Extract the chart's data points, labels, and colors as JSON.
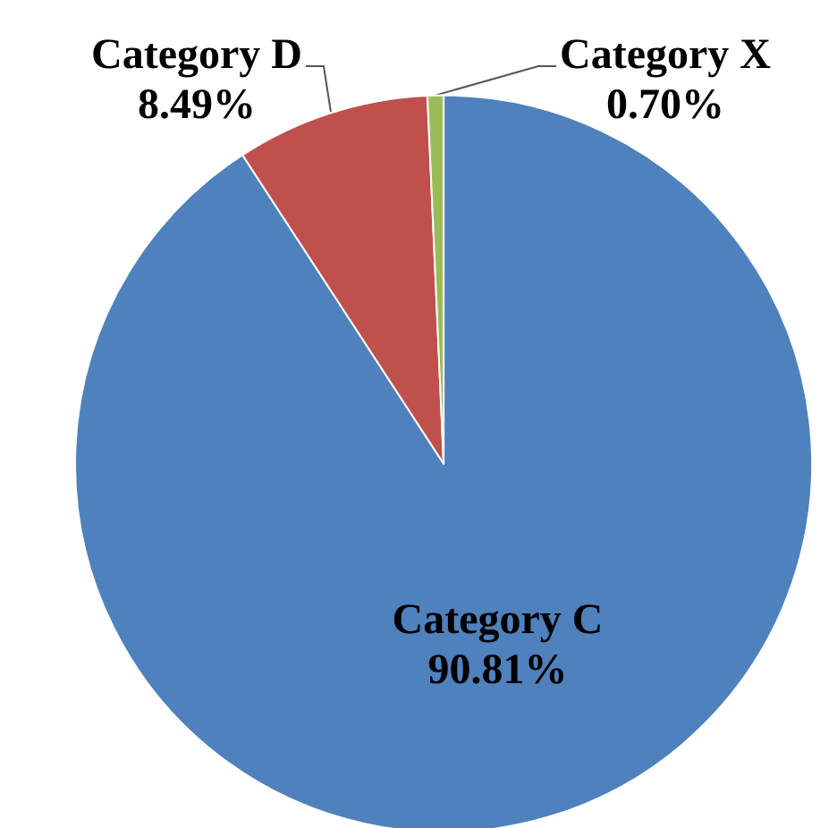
{
  "chart_data": {
    "type": "pie",
    "categories": [
      "Category C",
      "Category D",
      "Category X"
    ],
    "values": [
      90.81,
      8.49,
      0.7
    ],
    "value_labels": [
      "90.81%",
      "8.49%",
      "0.70%"
    ],
    "colors": [
      "#4f81bd",
      "#c0504d",
      "#9bbb59"
    ],
    "legend": false
  }
}
